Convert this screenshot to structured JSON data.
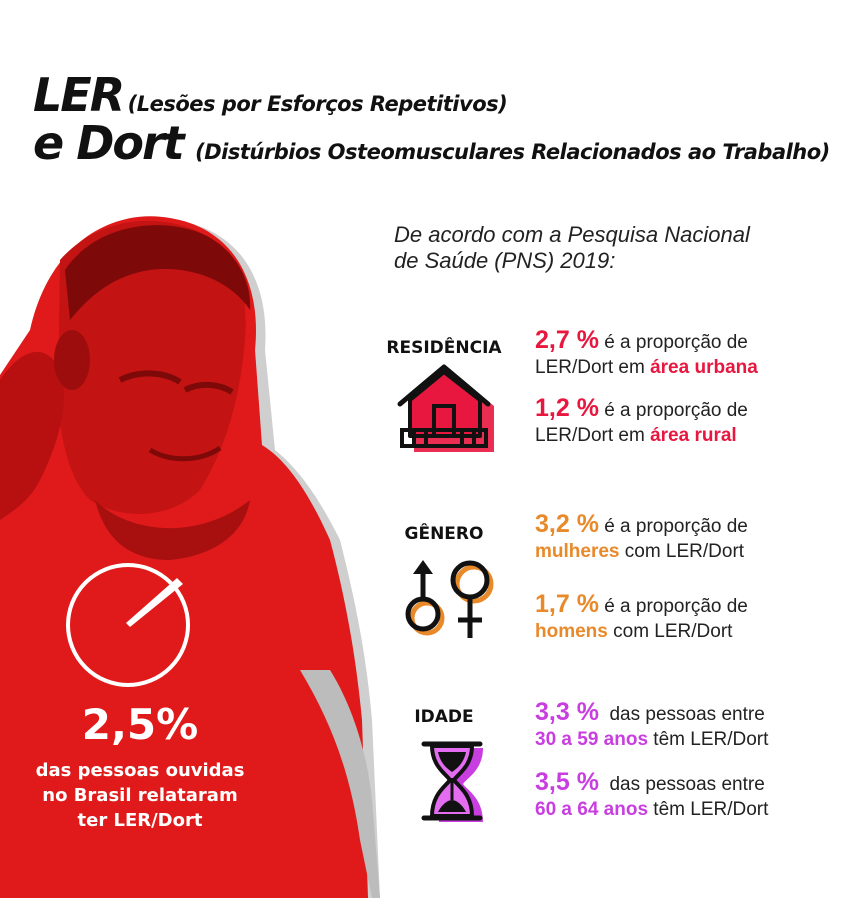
{
  "title": {
    "ler": "LER",
    "ler_full": "(Lesões por Esforços Repetitivos)",
    "dort": "e Dort",
    "dort_full": "(Distúrbios Osteomusculares Relacionados ao Trabalho)"
  },
  "intro": {
    "line1": "De acordo com a Pesquisa Nacional",
    "line2": "de Saúde (PNS) 2019:"
  },
  "highlight": {
    "percent": "2,5%",
    "line1": "das pessoas ouvidas",
    "line2": "no Brasil relataram",
    "line3": "ter LER/Dort",
    "gauge_fraction": 0.025
  },
  "residencia": {
    "label": "RESIDÊNCIA",
    "icon": "house-icon",
    "color": "#e8173f",
    "stats": [
      {
        "pct": "2,7 %",
        "text1": " é a proporção de",
        "text2_pre": "LER/Dort em ",
        "text2_hl": "área urbana",
        "text2_post": ""
      },
      {
        "pct": "1,2 %",
        "text1": " é a proporção de",
        "text2_pre": "LER/Dort em ",
        "text2_hl": "área rural",
        "text2_post": ""
      }
    ]
  },
  "genero": {
    "label": "GÊNERO",
    "icon": "gender-symbols-icon",
    "color": "#e8892a",
    "stats": [
      {
        "pct": "3,2 %",
        "text1": " é a proporção de",
        "text2_pre": "",
        "text2_hl": "mulheres",
        "text2_post": " com LER/Dort"
      },
      {
        "pct": "1,7 %",
        "text1": " é a proporção de",
        "text2_pre": "",
        "text2_hl": "homens",
        "text2_post": " com LER/Dort"
      }
    ]
  },
  "idade": {
    "label": "IDADE",
    "icon": "hourglass-icon",
    "color": "#c93ee0",
    "stats": [
      {
        "pct": "3,3 %",
        "text1": "  das pessoas entre",
        "text2_pre": "",
        "text2_hl": "30 a 59 anos",
        "text2_post": " têm LER/Dort"
      },
      {
        "pct": "3,5 %",
        "text1": "  das pessoas entre",
        "text2_pre": "",
        "text2_hl": "60 a 64 anos",
        "text2_post": " têm LER/Dort"
      }
    ]
  }
}
